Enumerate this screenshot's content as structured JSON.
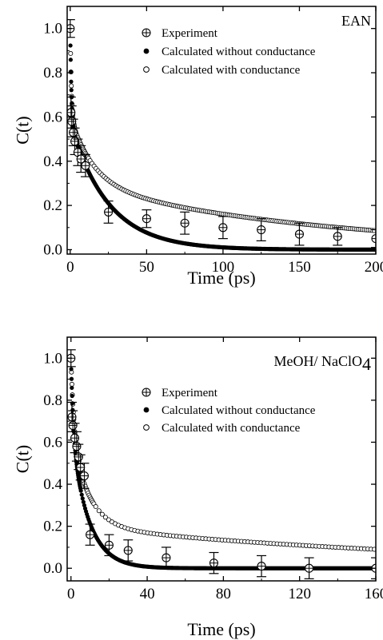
{
  "chart_data": [
    {
      "type": "scatter",
      "panel_label": "EAN",
      "xlabel": "Time (ps)",
      "ylabel": "C(t)",
      "xlim": [
        -2,
        200
      ],
      "ylim": [
        -0.02,
        1.1
      ],
      "x_ticks": [
        0,
        50,
        100,
        150,
        200
      ],
      "y_ticks": [
        0.0,
        0.2,
        0.4,
        0.6,
        0.8,
        1.0
      ],
      "legend": [
        "Experiment",
        "Calculated without conductance",
        "Calculated with conductance"
      ],
      "series": [
        {
          "name": "Experiment",
          "marker": "crossed-circle",
          "x": [
            0,
            0.5,
            1,
            2,
            3,
            5,
            7,
            10,
            25,
            50,
            75,
            100,
            125,
            150,
            175,
            200
          ],
          "y": [
            1.0,
            0.62,
            0.58,
            0.53,
            0.49,
            0.44,
            0.41,
            0.38,
            0.17,
            0.14,
            0.12,
            0.1,
            0.09,
            0.07,
            0.06,
            0.05
          ],
          "err": [
            0.04,
            0.07,
            0.07,
            0.06,
            0.06,
            0.06,
            0.06,
            0.05,
            0.05,
            0.04,
            0.05,
            0.05,
            0.05,
            0.05,
            0.04,
            0.04
          ]
        },
        {
          "name": "Calculated without conductance",
          "marker": "filled-circle",
          "model": {
            "a1": 0.43,
            "t1": 0.8,
            "a2": 0.57,
            "t2": 25
          }
        },
        {
          "name": "Calculated with conductance",
          "marker": "open-circle",
          "model": {
            "a1": 0.4,
            "t1": 0.8,
            "a2": 0.3,
            "t2": 15,
            "a3": 0.3,
            "t3": 160
          }
        }
      ]
    },
    {
      "type": "scatter",
      "panel_label": "MeOH/ NaClO",
      "panel_label_subscript": "4",
      "xlabel": "Time (ps)",
      "ylabel": "C(t)",
      "xlim": [
        -2,
        160
      ],
      "ylim": [
        -0.06,
        1.1
      ],
      "x_ticks": [
        0,
        40,
        80,
        120,
        160
      ],
      "y_ticks": [
        0.0,
        0.2,
        0.4,
        0.6,
        0.8,
        1.0
      ],
      "legend": [
        "Experiment",
        "Calculated without conductance",
        "Calculated with conductance"
      ],
      "series": [
        {
          "name": "Experiment",
          "marker": "crossed-circle",
          "x": [
            0,
            0.5,
            1,
            2,
            3,
            4,
            5,
            7,
            10,
            20,
            30,
            50,
            75,
            100,
            125,
            160
          ],
          "y": [
            1.0,
            0.72,
            0.68,
            0.62,
            0.58,
            0.53,
            0.48,
            0.44,
            0.16,
            0.11,
            0.085,
            0.05,
            0.025,
            0.01,
            0.0,
            0.0
          ],
          "err": [
            0.04,
            0.07,
            0.07,
            0.07,
            0.07,
            0.06,
            0.06,
            0.06,
            0.05,
            0.05,
            0.05,
            0.05,
            0.05,
            0.05,
            0.05,
            0.05
          ]
        },
        {
          "name": "Calculated without conductance",
          "marker": "filled-circle",
          "model": {
            "a1": 0.35,
            "t1": 1.2,
            "a2": 0.65,
            "t2": 9
          }
        },
        {
          "name": "Calculated with conductance",
          "marker": "open-circle",
          "model": {
            "a1": 0.35,
            "t1": 1.5,
            "a2": 0.45,
            "t2": 9,
            "a3": 0.2,
            "t3": 200
          }
        }
      ]
    }
  ]
}
